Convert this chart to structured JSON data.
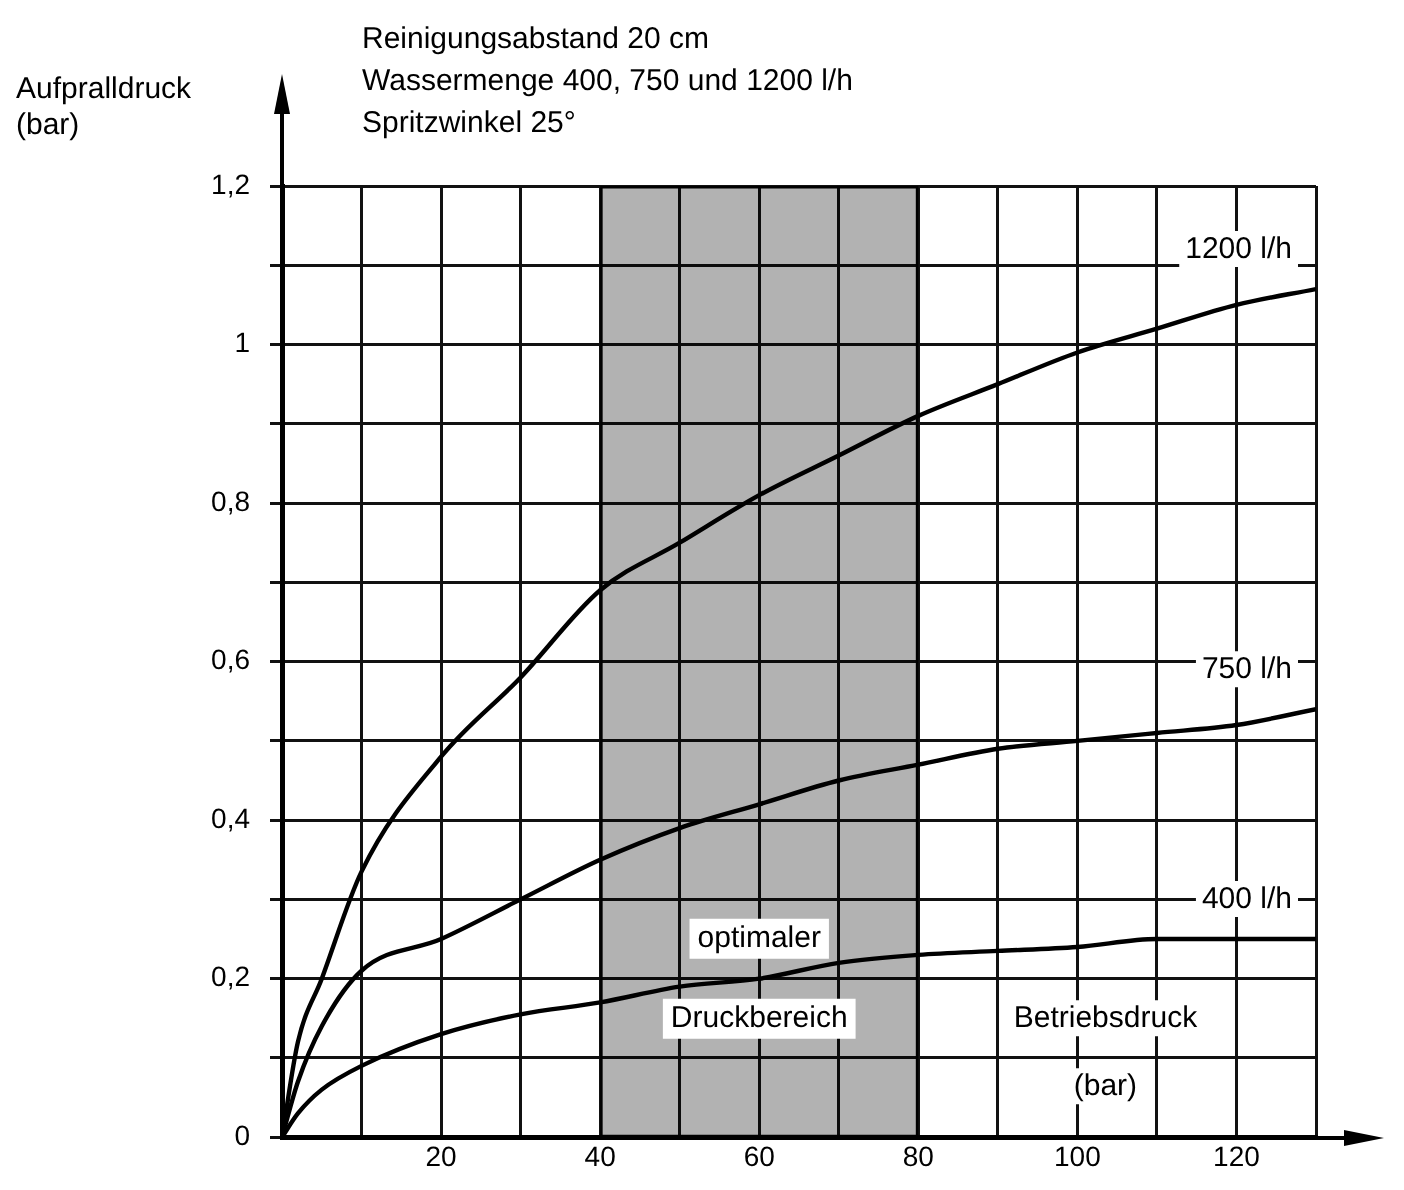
{
  "chart_data": {
    "type": "line",
    "title": "Reinigungsabstand 20 cm",
    "subtitle": "Wassermenge 400, 750 und 1200 l/h",
    "annotations": [
      "Spritzwinkel 25°"
    ],
    "xlabel": "Betriebsdruck (bar)",
    "ylabel": "Aufpralldruck (bar)",
    "xlim": [
      0,
      130
    ],
    "ylim": [
      0,
      1.2
    ],
    "xticks": [
      {
        "value": 10,
        "label": null
      },
      20,
      {
        "value": 30,
        "label": null
      },
      40,
      {
        "value": 50,
        "label": null
      },
      60,
      {
        "value": 70,
        "label": null
      },
      80,
      {
        "value": 90,
        "label": null
      },
      100,
      {
        "value": 110,
        "label": null
      },
      120,
      {
        "value": 130,
        "label": null
      }
    ],
    "yticks": [
      0,
      {
        "value": 0.1,
        "label": null
      },
      {
        "value": 0.2,
        "label": "0,2"
      },
      {
        "value": 0.3,
        "label": null
      },
      {
        "value": 0.4,
        "label": "0,4"
      },
      {
        "value": 0.5,
        "label": null
      },
      {
        "value": 0.6,
        "label": "0,6"
      },
      {
        "value": 0.7,
        "label": null
      },
      {
        "value": 0.8,
        "label": "0,8"
      },
      {
        "value": 0.9,
        "label": null
      },
      {
        "value": 1,
        "label": "1"
      },
      {
        "value": 1.1,
        "label": null
      },
      {
        "value": 1.2,
        "label": "1,2"
      }
    ],
    "grid": true,
    "legend": false,
    "marker": "none",
    "line_style": "solid",
    "x": [
      0,
      2,
      5,
      10,
      20,
      30,
      40,
      50,
      60,
      70,
      80,
      90,
      100,
      110,
      120,
      130
    ],
    "series": [
      {
        "name": "1200 l/h",
        "color": "#000000",
        "values": [
          0,
          0.12,
          0.2,
          0.335,
          0.48,
          0.58,
          0.69,
          0.75,
          0.81,
          0.86,
          0.91,
          0.95,
          0.99,
          1.02,
          1.05,
          1.07
        ]
      },
      {
        "name": "750 l/h",
        "color": "#000000",
        "values": [
          0,
          0.07,
          0.14,
          0.21,
          0.25,
          0.3,
          0.35,
          0.39,
          0.42,
          0.45,
          0.47,
          0.49,
          0.5,
          0.51,
          0.52,
          0.54
        ]
      },
      {
        "name": "400 l/h",
        "color": "#000000",
        "values": [
          0,
          0.03,
          0.06,
          0.09,
          0.13,
          0.155,
          0.17,
          0.19,
          0.2,
          0.22,
          0.23,
          0.235,
          0.24,
          0.25,
          0.25,
          0.25
        ]
      }
    ],
    "bands": [
      {
        "axis": "x",
        "from": 40,
        "to": 80,
        "label": "optimaler Druckbereich",
        "color": "#000000"
      }
    ]
  }
}
